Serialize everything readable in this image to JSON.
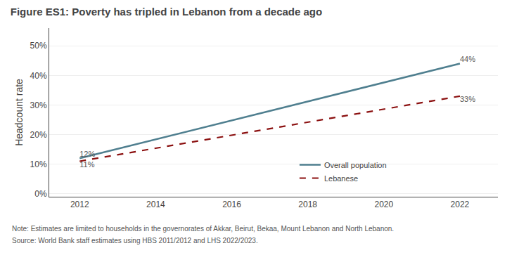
{
  "chart_data": {
    "type": "line",
    "title": "Figure ES1: Poverty has tripled in Lebanon from a decade ago",
    "y_label": "Headcount rate",
    "annotations": [
      "Note: Estimates are limited to households in the governorates of Akkar, Beirut, Bekaa, Mount Lebanon and North Lebanon.",
      "Source: World Bank staff estimates using HBS 2011/2012 and LHS 2022/2023."
    ],
    "series": [
      {
        "name": "Overall population",
        "color": "#4f7f8f",
        "line_style": "solid",
        "x": [
          2012,
          2022
        ],
        "values": [
          0.12,
          0.44
        ],
        "value_labels": [
          "12%",
          "44%"
        ]
      },
      {
        "name": "Lebanese",
        "color": "#8b1010",
        "line_style": "dashed",
        "x": [
          2012,
          2022
        ],
        "values": [
          0.11,
          0.33
        ],
        "value_labels": [
          "11%",
          "33%"
        ]
      }
    ],
    "xlim": [
      2011.2,
      2023.0
    ],
    "ylim": [
      -0.01,
      0.56
    ],
    "xticks": [
      2012,
      2014,
      2016,
      2018,
      2020,
      2022
    ],
    "yticks": [
      {
        "value": 0.0,
        "label": "0%"
      },
      {
        "value": 0.1,
        "label": "10%"
      },
      {
        "value": 0.2,
        "label": "20%"
      },
      {
        "value": 0.3,
        "label": "30%"
      },
      {
        "value": 0.4,
        "label": "40%"
      },
      {
        "value": 0.5,
        "label": "50%"
      }
    ],
    "grid": true,
    "legend": "lower right",
    "data_labels": true
  }
}
